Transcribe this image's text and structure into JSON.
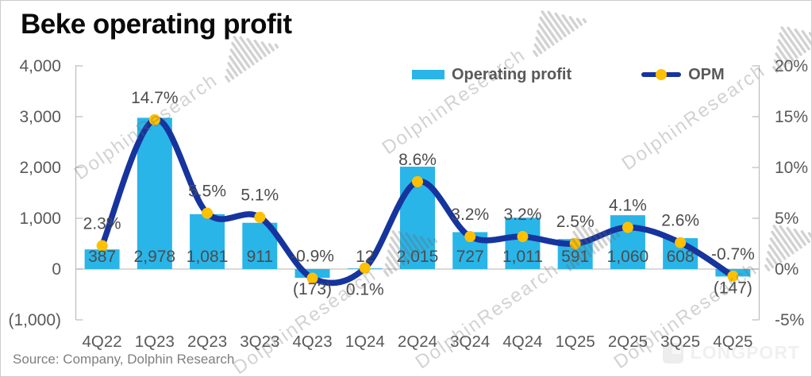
{
  "header": {
    "title": "Beke operating profit"
  },
  "legend": {
    "bar": {
      "label": "Operating profit",
      "color": "#29B5E8"
    },
    "line": {
      "label": "OPM",
      "color": "#16349E",
      "marker_color": "#FFC000"
    }
  },
  "footer": {
    "source": "Source: Company, Dolphin Research",
    "brand": "LONGPORT"
  },
  "watermark": {
    "text": "DolphinResearch"
  },
  "colors": {
    "bar": "#29B5E8",
    "line": "#16349E",
    "marker": "#FFC000",
    "axis_line": "#BFBFBF",
    "gridline": "#D9D9D9",
    "axis_text": "#595959",
    "data_label": "#4C4C4C"
  },
  "chart_data": {
    "type": "combo-bar-line",
    "title": "Beke operating profit",
    "categories": [
      "4Q22",
      "1Q23",
      "2Q23",
      "3Q23",
      "4Q23",
      "1Q24",
      "2Q24",
      "3Q24",
      "4Q24",
      "1Q25",
      "2Q25",
      "3Q25",
      "4Q25"
    ],
    "series": [
      {
        "name": "Operating profit",
        "type": "bar",
        "axis": "left",
        "values": [
          387,
          2978,
          1081,
          911,
          -173,
          12,
          2015,
          727,
          1011,
          591,
          1060,
          608,
          -147
        ],
        "labels": [
          "387",
          "2,978",
          "1,081",
          "911",
          "(173)",
          "12",
          "2,015",
          "727",
          "1,011",
          "591",
          "1,060",
          "608",
          "(147)"
        ]
      },
      {
        "name": "OPM",
        "type": "line",
        "axis": "right",
        "values": [
          2.3,
          14.7,
          5.5,
          5.1,
          -0.9,
          0.1,
          8.6,
          3.2,
          3.2,
          2.5,
          4.1,
          2.6,
          -0.7
        ],
        "labels": [
          "2.3%",
          "14.7%",
          "5.5%",
          "5.1%",
          "-0.9%",
          "0.1%",
          "8.6%",
          "3.2%",
          "3.2%",
          "2.5%",
          "4.1%",
          "2.6%",
          "-0.7%"
        ],
        "label_below_indices": [
          5
        ]
      }
    ],
    "left_axis": {
      "ticks": [
        "4,000",
        "3,000",
        "2,000",
        "1,000",
        "0",
        "(1,000)"
      ],
      "values": [
        4000,
        3000,
        2000,
        1000,
        0,
        -1000
      ],
      "range": [
        -1000,
        4000
      ]
    },
    "right_axis": {
      "ticks": [
        "20%",
        "15%",
        "10%",
        "5%",
        "0%",
        "-5%"
      ],
      "values": [
        20,
        15,
        10,
        5,
        0,
        -5
      ],
      "range": [
        -5,
        20
      ]
    },
    "grid": "zero-line-only",
    "legend_position": "top"
  }
}
